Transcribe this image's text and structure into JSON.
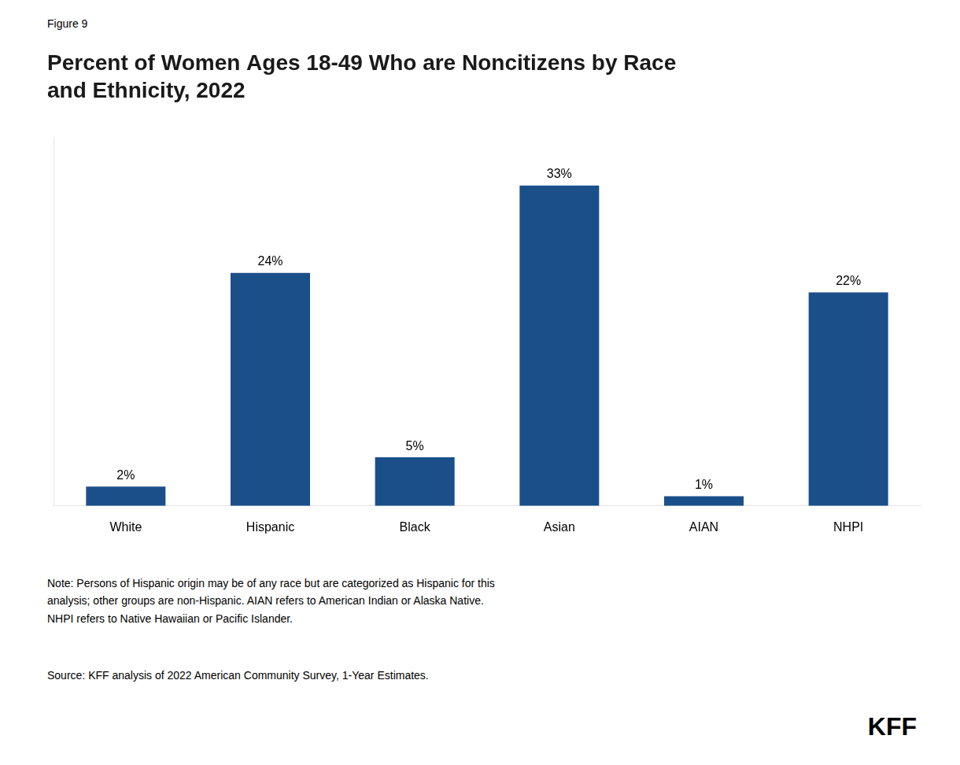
{
  "chart_data": {
    "type": "bar",
    "title": "Percent of Women Ages 18-49 Who are Noncitizens by Race\nand Ethnicity, 2022",
    "categories": [
      "White",
      "Hispanic",
      "Black",
      "Asian",
      "AIAN",
      "NHPI"
    ],
    "values": [
      2,
      24,
      5,
      33,
      1,
      22
    ],
    "value_labels": [
      "2%",
      "24%",
      "5%",
      "33%",
      "1%",
      "22%"
    ],
    "data_labels": true,
    "color": "#1a4f8a",
    "ylim": [
      0,
      38
    ],
    "grid": false,
    "tick_labels": "x",
    "annotations": [
      "Figure 9",
      "Note: Persons of Hispanic origin may be of any race but are categorized as Hispanic for this\nanalysis; other groups are non-Hispanic. AIAN refers to American Indian or Alaska Native.\nNHPI refers to Native Hawaiian or Pacific Islander.",
      "Source: KFF analysis of 2022 American Community Survey, 1-Year Estimates.",
      "KFF"
    ]
  }
}
